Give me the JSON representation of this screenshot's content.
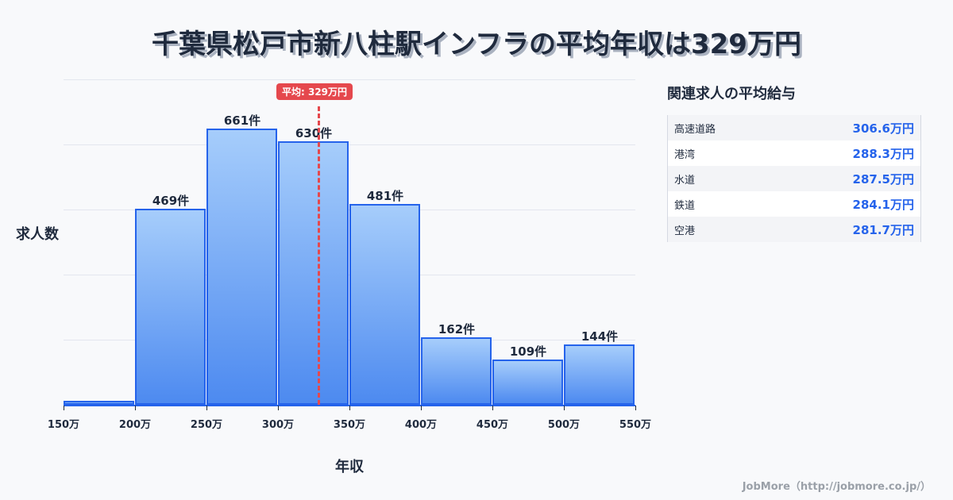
{
  "title": "千葉県松戸市新八柱駅インフラの平均年収は329万円",
  "average_badge": "平均: 329万円",
  "ylabel": "求人数",
  "xlabel": "年収",
  "side": {
    "title": "関連求人の平均給与",
    "rows": [
      {
        "name": "高速道路",
        "value": "306.6万円"
      },
      {
        "name": "港湾",
        "value": "288.3万円"
      },
      {
        "name": "水道",
        "value": "287.5万円"
      },
      {
        "name": "鉄道",
        "value": "284.1万円"
      },
      {
        "name": "空港",
        "value": "281.7万円"
      }
    ]
  },
  "footer": "JobMore（http://jobmore.co.jp/）",
  "colors": {
    "bar_border": "#2563eb",
    "bar_top": "#a6cdfb",
    "bar_bottom": "#4d8af0",
    "average": "#e5484d",
    "accent": "#2563eb"
  },
  "chart_data": {
    "type": "bar",
    "title": "千葉県松戸市新八柱駅インフラの平均年収は329万円",
    "xlabel": "年収",
    "ylabel": "求人数",
    "categories": [
      "150-200万",
      "200-250万",
      "250-300万",
      "300-350万",
      "350-400万",
      "400-450万",
      "450-500万",
      "500-550万"
    ],
    "values": [
      10,
      469,
      661,
      630,
      481,
      162,
      109,
      144
    ],
    "labels": [
      "",
      "469件",
      "661件",
      "630件",
      "481件",
      "162件",
      "109件",
      "144件"
    ],
    "x_ticks": [
      "150万",
      "200万",
      "250万",
      "300万",
      "350万",
      "400万",
      "450万",
      "500万",
      "550万"
    ],
    "ylim": [
      0,
      778
    ],
    "grid": true,
    "average": {
      "value": 329,
      "label": "平均: 329万円"
    }
  }
}
